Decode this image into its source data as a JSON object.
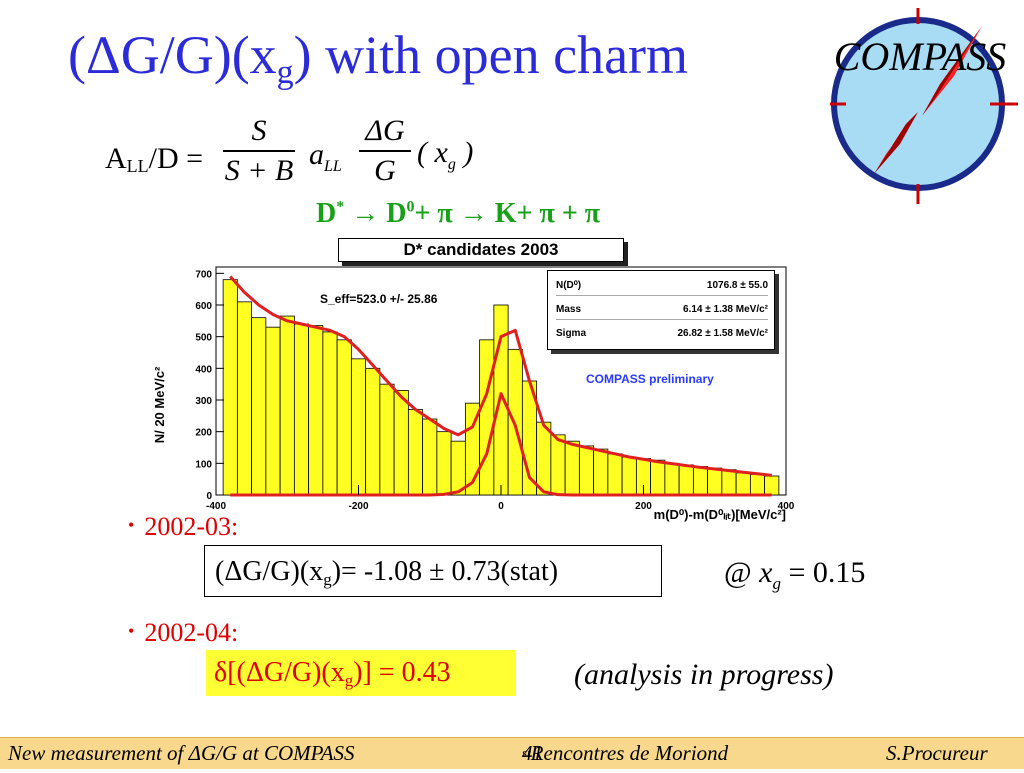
{
  "title": {
    "pre": "(ΔG/G)(x",
    "sub": "g",
    "post": ") with open charm"
  },
  "formula": {
    "lhs_main": "A",
    "lhs_sub": "LL",
    "lhs_rest": "/D =",
    "frac1_num": "S",
    "frac1_den": "S + B",
    "coef": "a",
    "coef_sub": "LL",
    "frac2_num": "ΔG",
    "frac2_den": "G",
    "arg": "( x",
    "arg_sub": "g",
    "arg_close": " )"
  },
  "decay": {
    "text1": "D",
    "sup1": "*",
    "text2": " → D",
    "sup2": "0",
    "text3": "+ π → K+ π + π"
  },
  "logo": {
    "text": "COMPASS"
  },
  "histogram": {
    "title": "D* candidates 2003",
    "ylabel": "N/ 20 MeV/c²",
    "xlabel": "m(D⁰)-m(D⁰ₗᵢₜ)[MeV/c²]",
    "seff": "S_eff=523.0 +/- 25.86",
    "preliminary": "COMPASS preliminary",
    "stats": [
      {
        "label": "N(D⁰)",
        "value": "1076.8 ± 55.0"
      },
      {
        "label": "Mass",
        "value": "6.14 ± 1.38 MeV/c²"
      },
      {
        "label": "Sigma",
        "value": "26.82 ± 1.58 MeV/c²"
      }
    ]
  },
  "chart_data": {
    "type": "bar",
    "x": [
      -380,
      -360,
      -340,
      -320,
      -300,
      -280,
      -260,
      -240,
      -220,
      -200,
      -180,
      -160,
      -140,
      -120,
      -100,
      -80,
      -60,
      -40,
      -20,
      0,
      20,
      40,
      60,
      80,
      100,
      120,
      140,
      160,
      180,
      200,
      220,
      240,
      260,
      280,
      300,
      320,
      340,
      360,
      380
    ],
    "values": [
      680,
      610,
      560,
      530,
      565,
      540,
      535,
      515,
      490,
      430,
      400,
      350,
      330,
      270,
      240,
      200,
      170,
      290,
      490,
      600,
      460,
      360,
      230,
      190,
      170,
      155,
      145,
      130,
      120,
      115,
      110,
      100,
      95,
      90,
      85,
      80,
      70,
      65,
      60
    ],
    "fit_total": [
      690,
      640,
      600,
      570,
      550,
      540,
      530,
      520,
      500,
      460,
      410,
      360,
      310,
      270,
      240,
      210,
      190,
      215,
      320,
      500,
      520,
      360,
      220,
      175,
      160,
      150,
      140,
      130,
      120,
      113,
      105,
      99,
      93,
      87,
      82,
      77,
      72,
      67,
      62
    ],
    "fit_signal": [
      0,
      0,
      0,
      0,
      0,
      0,
      0,
      0,
      0,
      0,
      0,
      0,
      0,
      0,
      0,
      2,
      10,
      40,
      130,
      320,
      220,
      55,
      10,
      1,
      0,
      0,
      0,
      0,
      0,
      0,
      0,
      0,
      0,
      0,
      0,
      0,
      0,
      0,
      0
    ],
    "xlim": [
      -400,
      400
    ],
    "ylim": [
      0,
      720
    ],
    "xticks": [
      -400,
      -200,
      0,
      200,
      400
    ],
    "yticks": [
      0,
      100,
      200,
      300,
      400,
      500,
      600,
      700
    ]
  },
  "bullet1": "2002-03:",
  "result1": {
    "pre": "(ΔG/G)(x",
    "sub": "g",
    "post": ")= -1.08 ± 0.73(stat)"
  },
  "at_xg": {
    "at": "@ ",
    "x": "x",
    "sub": "g",
    "eq": " = 0.15"
  },
  "bullet2": "2002-04:",
  "result2": {
    "pre": "δ[(ΔG/G)(x",
    "sub": "g",
    "post": ")] = 0.43"
  },
  "note": "(analysis in progress)",
  "footer": {
    "left_pre": "New measurement of ΔG/G at COMPASS",
    "mid_num": "41",
    "mid_sup": "st",
    "mid_rest": " Rencontres de Moriond",
    "right": "S.Procureur"
  }
}
